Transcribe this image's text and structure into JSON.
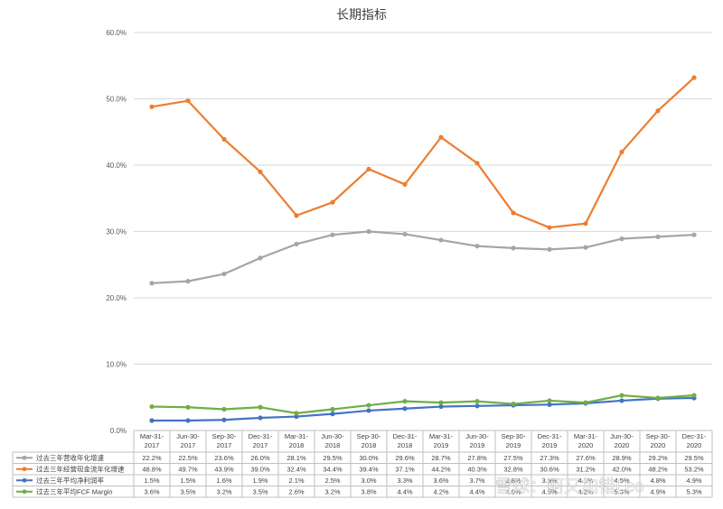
{
  "chart_data": {
    "type": "line",
    "title": "长期指标",
    "categories": [
      [
        "Mar-31-",
        "2017"
      ],
      [
        "Jun-30-",
        "2017"
      ],
      [
        "Sep-30-",
        "2017"
      ],
      [
        "Dec-31-",
        "2017"
      ],
      [
        "Mar-31-",
        "2018"
      ],
      [
        "Jun-30-",
        "2018"
      ],
      [
        "Sep-30-",
        "2018"
      ],
      [
        "Dec-31-",
        "2018"
      ],
      [
        "Mar-31-",
        "2019"
      ],
      [
        "Jun-30-",
        "2019"
      ],
      [
        "Sep-30-",
        "2019"
      ],
      [
        "Dec-31-",
        "2019"
      ],
      [
        "Mar-31-",
        "2020"
      ],
      [
        "Jun-30-",
        "2020"
      ],
      [
        "Sep-30-",
        "2020"
      ],
      [
        "Dec-31-",
        "2020"
      ]
    ],
    "ylim": [
      0,
      60
    ],
    "yticks": [
      "0.0%",
      "10.0%",
      "20.0%",
      "30.0%",
      "40.0%",
      "50.0%",
      "60.0%"
    ],
    "grid": true,
    "legend": "data-table-below",
    "series": [
      {
        "name": "过去三年营收年化增速",
        "color": "#a5a5a5",
        "values": [
          22.2,
          22.5,
          23.6,
          26.0,
          28.1,
          29.5,
          30.0,
          29.6,
          28.7,
          27.8,
          27.5,
          27.3,
          27.6,
          28.9,
          29.2,
          29.5
        ],
        "labels": [
          "22.2%",
          "22.5%",
          "23.6%",
          "26.0%",
          "28.1%",
          "29.5%",
          "30.0%",
          "29.6%",
          "28.7%",
          "27.8%",
          "27.5%",
          "27.3%",
          "27.6%",
          "28.9%",
          "29.2%",
          "29.5%"
        ]
      },
      {
        "name": "过去三年经营现金流年化增速",
        "color": "#ed7d31",
        "values": [
          48.8,
          49.7,
          43.9,
          39.0,
          32.4,
          34.4,
          39.4,
          37.1,
          44.2,
          40.3,
          32.8,
          30.6,
          31.2,
          42.0,
          48.2,
          53.2
        ],
        "labels": [
          "48.8%",
          "49.7%",
          "43.9%",
          "39.0%",
          "32.4%",
          "34.4%",
          "39.4%",
          "37.1%",
          "44.2%",
          "40.3%",
          "32.8%",
          "30.6%",
          "31.2%",
          "42.0%",
          "48.2%",
          "53.2%"
        ]
      },
      {
        "name": "过去三年平均净利润率",
        "color": "#4472c4",
        "values": [
          1.5,
          1.5,
          1.6,
          1.9,
          2.1,
          2.5,
          3.0,
          3.3,
          3.6,
          3.7,
          3.8,
          3.9,
          4.1,
          4.5,
          4.8,
          4.9
        ],
        "labels": [
          "1.5%",
          "1.5%",
          "1.6%",
          "1.9%",
          "2.1%",
          "2.5%",
          "3.0%",
          "3.3%",
          "3.6%",
          "3.7%",
          "3.8%",
          "3.9%",
          "4.1%",
          "4.5%",
          "4.8%",
          "4.9%"
        ]
      },
      {
        "name": "过去三年平均FCF Margin",
        "color": "#70ad47",
        "values": [
          3.6,
          3.5,
          3.2,
          3.5,
          2.6,
          3.2,
          3.8,
          4.4,
          4.2,
          4.4,
          4.0,
          4.5,
          4.2,
          5.3,
          4.9,
          5.3
        ],
        "labels": [
          "3.6%",
          "3.5%",
          "3.2%",
          "3.5%",
          "2.6%",
          "3.2%",
          "3.8%",
          "4.4%",
          "4.2%",
          "4.4%",
          "4.0%",
          "4.5%",
          "4.2%",
          "5.3%",
          "4.9%",
          "5.3%"
        ]
      }
    ]
  },
  "watermark": {
    "text": "雪球：阿又加错Leo"
  }
}
